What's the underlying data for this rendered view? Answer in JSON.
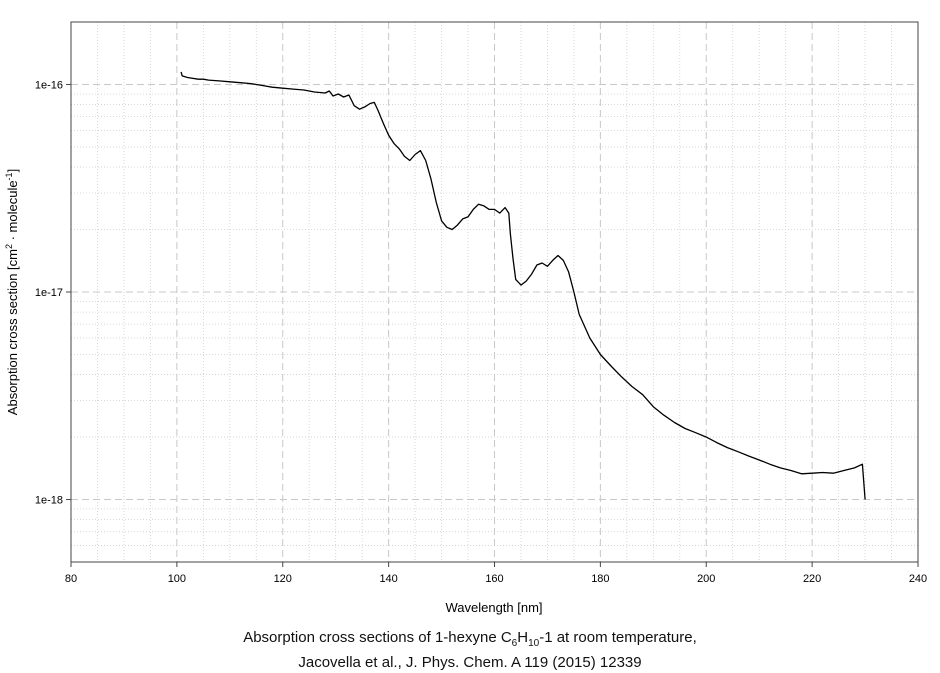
{
  "chart_data": {
    "type": "line",
    "title": "",
    "xlabel": "Wavelength [nm]",
    "ylabel_parts": {
      "before": "Absorption cross section [cm",
      "sup1": "2",
      "middle": " · molecule",
      "sup2": "-1",
      "after": "]"
    },
    "x_ticks": [
      "80",
      "100",
      "120",
      "140",
      "160",
      "180",
      "200",
      "220",
      "240"
    ],
    "y_ticks": [
      "1e-16",
      "1e-17",
      "1e-18"
    ],
    "xlim": [
      80,
      240
    ],
    "ylim": [
      5e-19,
      2e-16
    ],
    "yscale": "log",
    "grid": true,
    "legend": "none",
    "series": [
      {
        "color": "#000000",
        "x": [
          100.8,
          101,
          102,
          104,
          105,
          106,
          108,
          110,
          112,
          114,
          116,
          118,
          120,
          122,
          124,
          126,
          128,
          128.8,
          129.5,
          130.5,
          131.5,
          132.5,
          133.5,
          134.5,
          135.5,
          136.5,
          137.3,
          138,
          139,
          140,
          141,
          142,
          143,
          144,
          145,
          146,
          147,
          148,
          149,
          150,
          151,
          152,
          153,
          154,
          155,
          156,
          157,
          158,
          159,
          160,
          161,
          162,
          162.7,
          163,
          163.5,
          164,
          165,
          166,
          167,
          168,
          169,
          170,
          171,
          172,
          173,
          174,
          175,
          176,
          178,
          180,
          182,
          184,
          186,
          188,
          190,
          192,
          194,
          196,
          198,
          200,
          202,
          204,
          206,
          208,
          210,
          212,
          214,
          216,
          218,
          220,
          222,
          224,
          226,
          228,
          229.5,
          230
        ],
        "y": [
          1.15e-16,
          1.1e-16,
          1.08e-16,
          1.06e-16,
          1.06e-16,
          1.05e-16,
          1.04e-16,
          1.03e-16,
          1.02e-16,
          1.01e-16,
          9.9e-17,
          9.7e-17,
          9.6e-17,
          9.5e-17,
          9.4e-17,
          9.2e-17,
          9.1e-17,
          9.3e-17,
          8.8e-17,
          9e-17,
          8.7e-17,
          8.9e-17,
          7.9e-17,
          7.6e-17,
          7.8e-17,
          8.1e-17,
          8.2e-17,
          7.5e-17,
          6.5e-17,
          5.7e-17,
          5.2e-17,
          4.9e-17,
          4.5e-17,
          4.3e-17,
          4.6e-17,
          4.8e-17,
          4.3e-17,
          3.5e-17,
          2.7e-17,
          2.2e-17,
          2.05e-17,
          2e-17,
          2.1e-17,
          2.25e-17,
          2.3e-17,
          2.5e-17,
          2.65e-17,
          2.6e-17,
          2.5e-17,
          2.5e-17,
          2.4e-17,
          2.55e-17,
          2.4e-17,
          1.9e-17,
          1.45e-17,
          1.15e-17,
          1.08e-17,
          1.13e-17,
          1.22e-17,
          1.35e-17,
          1.38e-17,
          1.33e-17,
          1.42e-17,
          1.5e-17,
          1.42e-17,
          1.25e-17,
          1e-17,
          7.8e-18,
          6e-18,
          5e-18,
          4.4e-18,
          3.9e-18,
          3.5e-18,
          3.2e-18,
          2.8e-18,
          2.55e-18,
          2.35e-18,
          2.2e-18,
          2.1e-18,
          2e-18,
          1.88e-18,
          1.78e-18,
          1.7e-18,
          1.62e-18,
          1.55e-18,
          1.48e-18,
          1.42e-18,
          1.38e-18,
          1.33e-18,
          1.34e-18,
          1.35e-18,
          1.34e-18,
          1.38e-18,
          1.42e-18,
          1.48e-18,
          1e-18
        ]
      }
    ]
  },
  "caption": {
    "line1_before": "Absorption cross sections of 1-hexyne C",
    "sub1": "6",
    "mid1": "H",
    "sub2": "10",
    "line1_after": "-1 at room temperature,",
    "line2": "Jacovella et al., J. Phys. Chem. A 119 (2015) 12339"
  }
}
